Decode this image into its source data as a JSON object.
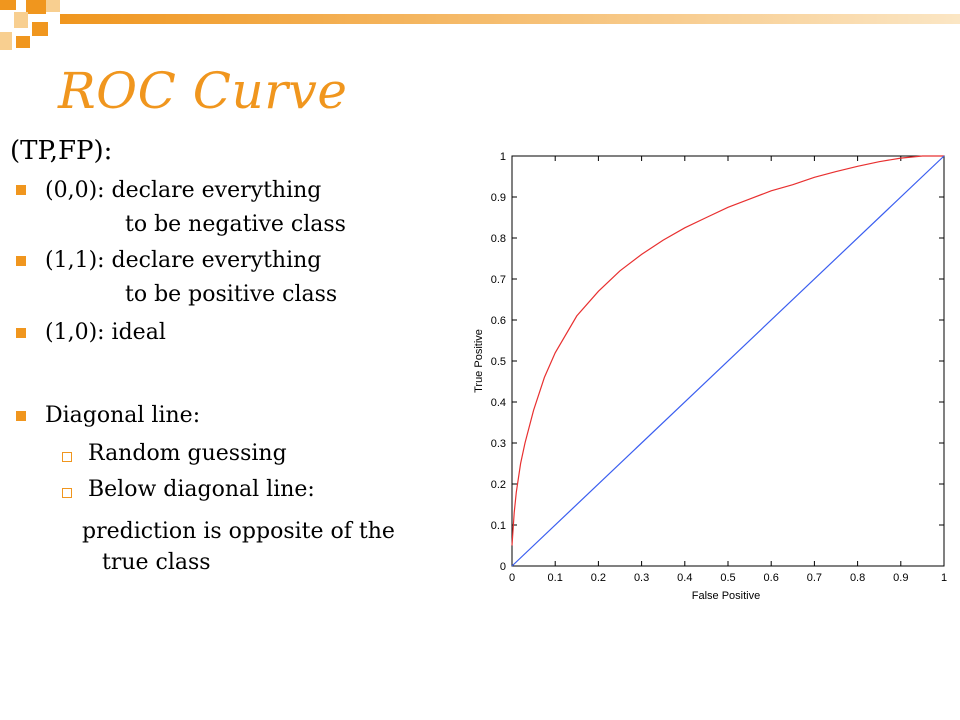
{
  "slide": {
    "title": "ROC Curve",
    "heading": "(TP,FP):",
    "bullets": [
      {
        "line1": "(0,0): declare everything",
        "line2": "to be negative class"
      },
      {
        "line1": "(1,1): declare everything",
        "line2": "to be positive class"
      },
      {
        "line1": "(1,0): ideal",
        "line2": ""
      },
      {
        "line1": "Diagonal line:",
        "line2": ""
      }
    ],
    "sub_bullets": [
      "Random guessing",
      "Below diagonal line:"
    ],
    "note": {
      "line1": "prediction is opposite of the",
      "line2": "true class"
    },
    "accent_color": "#f0961e"
  },
  "chart_data": {
    "type": "line",
    "xlabel": "False Positive",
    "ylabel": "True Positive",
    "xlim": [
      0,
      1
    ],
    "ylim": [
      0,
      1
    ],
    "xticks": [
      "0",
      "0.1",
      "0.2",
      "0.3",
      "0.4",
      "0.5",
      "0.6",
      "0.7",
      "0.8",
      "0.9",
      "1"
    ],
    "yticks": [
      "0",
      "0.1",
      "0.2",
      "0.3",
      "0.4",
      "0.5",
      "0.6",
      "0.7",
      "0.8",
      "0.9",
      "1"
    ],
    "grid": false,
    "series": [
      {
        "color": "#e83030",
        "x": [
          0,
          0.005,
          0.01,
          0.02,
          0.03,
          0.05,
          0.075,
          0.1,
          0.15,
          0.2,
          0.25,
          0.3,
          0.35,
          0.4,
          0.45,
          0.5,
          0.55,
          0.6,
          0.65,
          0.7,
          0.75,
          0.8,
          0.85,
          0.9,
          0.95,
          1
        ],
        "y": [
          0.05,
          0.13,
          0.18,
          0.25,
          0.3,
          0.38,
          0.46,
          0.52,
          0.61,
          0.67,
          0.72,
          0.76,
          0.795,
          0.825,
          0.85,
          0.875,
          0.895,
          0.915,
          0.93,
          0.948,
          0.962,
          0.975,
          0.986,
          0.995,
          1.0,
          1.0
        ]
      },
      {
        "color": "#3a5ef0",
        "x": [
          0,
          1
        ],
        "y": [
          0,
          1
        ]
      }
    ]
  }
}
